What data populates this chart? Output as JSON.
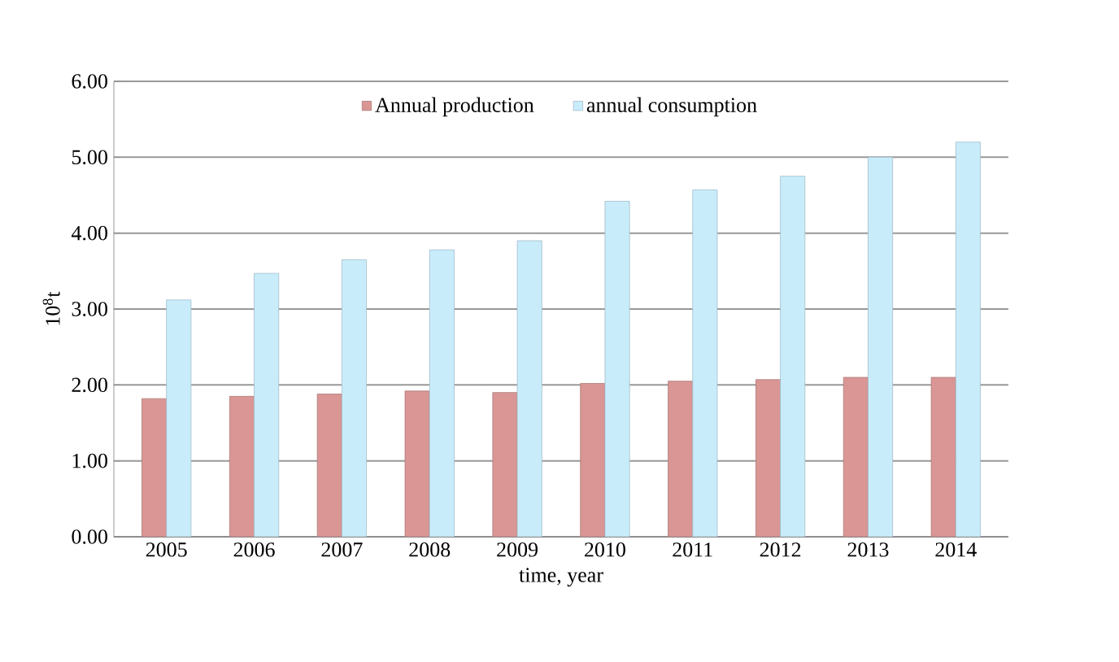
{
  "chart_data": {
    "type": "bar",
    "xlabel": "time, year",
    "ylabel": "10$^{8}$t",
    "categories": [
      "2005",
      "2006",
      "2007",
      "2008",
      "2009",
      "2010",
      "2011",
      "2012",
      "2013",
      "2014"
    ],
    "series": [
      {
        "name": "Annual production",
        "color": "#d99694",
        "values": [
          1.82,
          1.85,
          1.88,
          1.92,
          1.9,
          2.02,
          2.05,
          2.07,
          2.1,
          2.1
        ]
      },
      {
        "name": "annual consumption",
        "color": "#c9ecfb",
        "values": [
          3.12,
          3.47,
          3.65,
          3.78,
          3.9,
          4.42,
          4.57,
          4.75,
          5.0,
          5.2
        ]
      }
    ],
    "ylim": [
      0,
      6
    ],
    "yticks": [
      {
        "value": 0,
        "label": "0.00"
      },
      {
        "value": 1,
        "label": "1.00"
      },
      {
        "value": 2,
        "label": "2.00"
      },
      {
        "value": 3,
        "label": "3.00"
      },
      {
        "value": 4,
        "label": "4.00"
      },
      {
        "value": 5,
        "label": "5.00"
      },
      {
        "value": 6,
        "label": "6.00"
      }
    ],
    "grid": "y",
    "legend": "top"
  }
}
